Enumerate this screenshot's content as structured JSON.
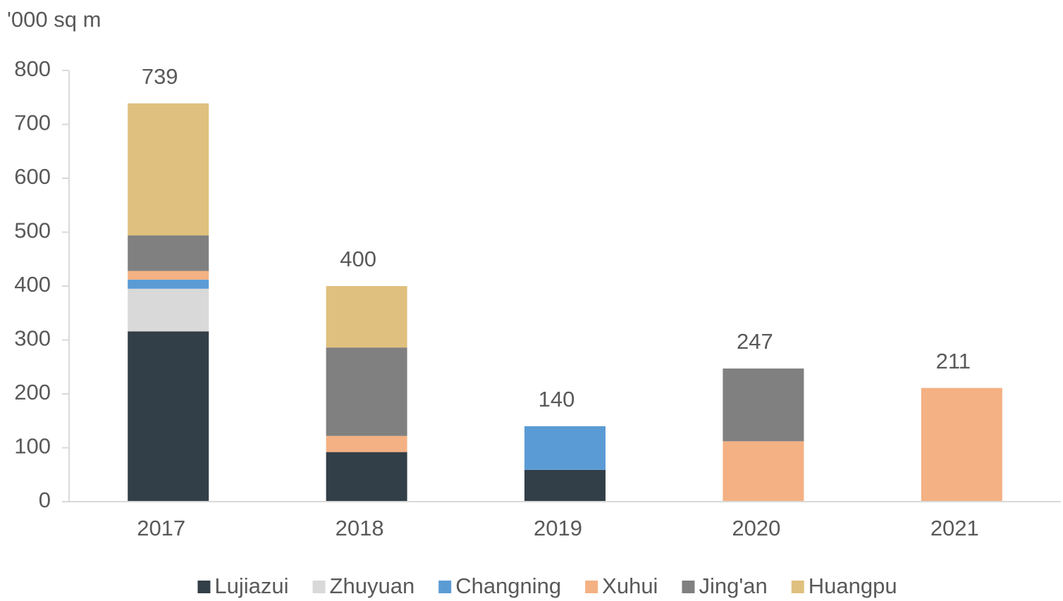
{
  "chart_data": {
    "type": "stacked_bar",
    "y_label": "'000 sq m",
    "categories": [
      "2017",
      "2018",
      "2019",
      "2020",
      "2021"
    ],
    "series": [
      {
        "name": "Lujiazui",
        "color": "#333f48",
        "values": [
          316,
          92,
          59,
          0,
          0
        ]
      },
      {
        "name": "Zhuyuan",
        "color": "#d9d9d9",
        "values": [
          79,
          0,
          0,
          0,
          0
        ]
      },
      {
        "name": "Changning",
        "color": "#5b9bd5",
        "values": [
          17,
          0,
          81,
          0,
          0
        ]
      },
      {
        "name": "Xuhui",
        "color": "#f4b183",
        "values": [
          16,
          30,
          0,
          112,
          211
        ]
      },
      {
        "name": "Jing'an",
        "color": "#808080",
        "values": [
          66,
          164,
          0,
          135,
          0
        ]
      },
      {
        "name": "Huangpu",
        "color": "#e0c07e",
        "values": [
          245,
          114,
          0,
          0,
          0
        ]
      }
    ],
    "totals": [
      739,
      400,
      140,
      247,
      211
    ],
    "ylim": [
      0,
      800
    ],
    "yticks": [
      0,
      100,
      200,
      300,
      400,
      500,
      600,
      700,
      800
    ],
    "grid": false,
    "legend": "bottom"
  }
}
